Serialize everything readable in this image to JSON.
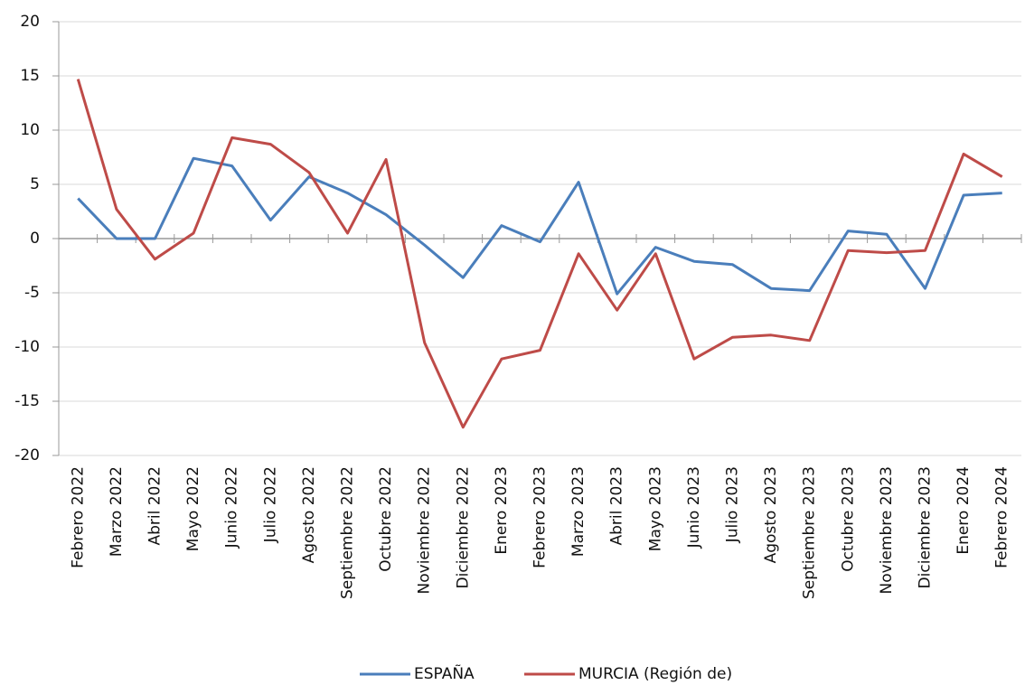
{
  "chart_data": {
    "type": "line",
    "categories": [
      "Febrero 2022",
      "Marzo 2022",
      "Abril 2022",
      "Mayo 2022",
      "Junio 2022",
      "Julio 2022",
      "Agosto 2022",
      "Septiembre 2022",
      "Octubre 2022",
      "Noviembre 2022",
      "Diciembre 2022",
      "Enero 2023",
      "Febrero 2023",
      "Marzo 2023",
      "Abril 2023",
      "Mayo 2023",
      "Junio 2023",
      "Julio 2023",
      "Agosto 2023",
      "Septiembre 2023",
      "Octubre 2023",
      "Noviembre 2023",
      "Diciembre 2023",
      "Enero 2024",
      "Febrero 2024"
    ],
    "series": [
      {
        "name": "ESPAÑA",
        "color": "#4a7ebb",
        "values": [
          3.7,
          0.0,
          0.0,
          7.4,
          6.7,
          1.7,
          5.7,
          4.2,
          2.2,
          -0.6,
          -3.6,
          1.2,
          -0.3,
          5.2,
          -5.1,
          -0.8,
          -2.1,
          -2.4,
          -4.6,
          -4.8,
          0.7,
          0.4,
          -4.6,
          4.0,
          4.2
        ]
      },
      {
        "name": "MURCIA (Región de)",
        "color": "#be4b48",
        "values": [
          14.7,
          2.7,
          -1.9,
          0.5,
          9.3,
          8.7,
          6.1,
          0.5,
          7.3,
          -9.6,
          -17.4,
          -11.1,
          -10.3,
          -1.4,
          -6.6,
          -1.4,
          -11.1,
          -9.1,
          -8.9,
          -9.4,
          -1.1,
          -1.3,
          -1.1,
          7.8,
          5.7
        ]
      }
    ],
    "ylim": [
      -20,
      20
    ],
    "yticks": [
      -20,
      -15,
      -10,
      -5,
      0,
      5,
      10,
      15,
      20
    ],
    "grid": true,
    "legend": "bottom"
  }
}
